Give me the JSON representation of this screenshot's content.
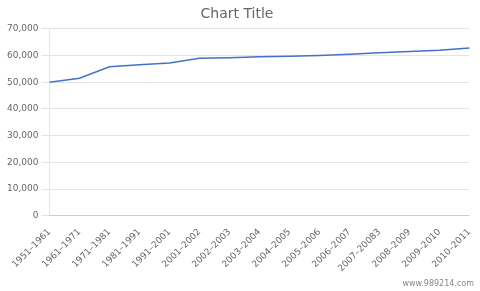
{
  "chart_data": {
    "type": "line",
    "title": "Chart Title",
    "categories": [
      "1951–1961",
      "1961–1971",
      "1971–1981",
      "1981–1991",
      "1991–2001",
      "2001–2002",
      "2002–2003",
      "2003–2004",
      "2004–2005",
      "2005–2006",
      "2006–2007",
      "2007–20083",
      "2008–2009",
      "2009–2010",
      "2010–2011"
    ],
    "values": [
      50000,
      51500,
      55800,
      56500,
      57200,
      59000,
      59200,
      59500,
      59700,
      60000,
      60500,
      61000,
      61500,
      62000,
      62800
    ],
    "color": "#4472C4",
    "ylim": [
      0,
      70000
    ],
    "yticks": [
      0,
      {
        "value": 10000,
        "label": "10,000"
      },
      {
        "value": 20000,
        "label": "20,000"
      },
      {
        "value": 30000,
        "label": "30,000"
      },
      {
        "value": 40000,
        "label": "40,000"
      },
      {
        "value": 50000,
        "label": "50,000"
      },
      {
        "value": 60000,
        "label": "60,000"
      },
      {
        "value": 70000,
        "label": "70,000"
      }
    ],
    "grid": true,
    "annotations": [
      "www.989214.com"
    ]
  }
}
